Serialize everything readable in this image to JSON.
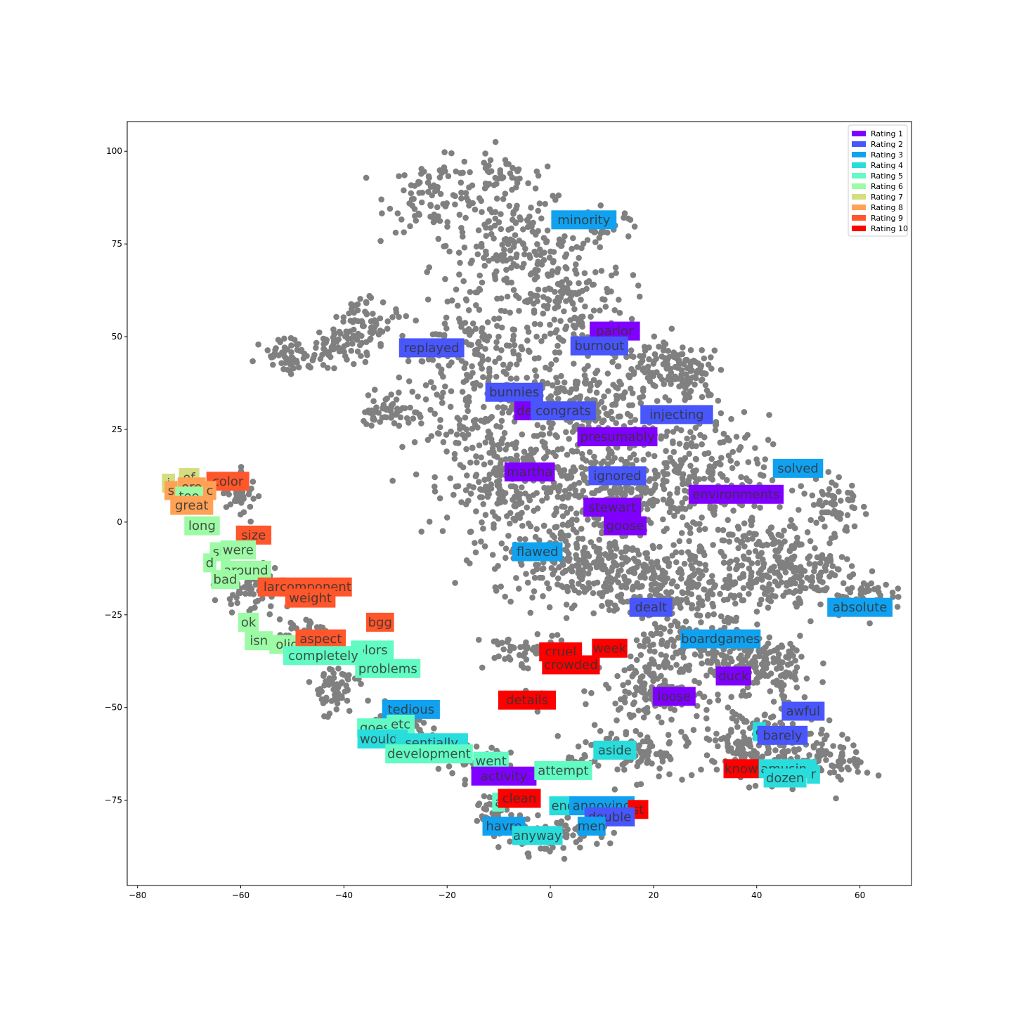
{
  "chart_data": {
    "type": "scatter",
    "title": "",
    "xlabel": "",
    "ylabel": "",
    "xlim": [
      -82,
      70
    ],
    "ylim": [
      -98,
      108
    ],
    "xticks": [
      -80,
      -60,
      -40,
      -20,
      0,
      20,
      40,
      60
    ],
    "yticks": [
      -75,
      -50,
      -25,
      0,
      25,
      50,
      75,
      100
    ],
    "grid": false,
    "legend_position": "top-right",
    "point_color": "#808080",
    "ratings": [
      {
        "name": "Rating 1",
        "color": "#8000ff"
      },
      {
        "name": "Rating 2",
        "color": "#4856fb"
      },
      {
        "name": "Rating 3",
        "color": "#10a2f0"
      },
      {
        "name": "Rating 4",
        "color": "#2adddd"
      },
      {
        "name": "Rating 5",
        "color": "#62fbc4"
      },
      {
        "name": "Rating 6",
        "color": "#9cfba4"
      },
      {
        "name": "Rating 7",
        "color": "#d4dd80"
      },
      {
        "name": "Rating 8",
        "color": "#ffa256"
      },
      {
        "name": "Rating 9",
        "color": "#ff562c"
      },
      {
        "name": "Rating 10",
        "color": "#ff0000"
      }
    ],
    "words": [
      {
        "text": "minority",
        "x": 6.5,
        "y": 81.5,
        "rating": 3
      },
      {
        "text": "parlor",
        "x": 12.5,
        "y": 51.5,
        "rating": 1
      },
      {
        "text": "burnout",
        "x": 9.5,
        "y": 47.5,
        "rating": 2
      },
      {
        "text": "replayed",
        "x": -23,
        "y": 47,
        "rating": 2
      },
      {
        "text": "bunnies",
        "x": -7,
        "y": 35,
        "rating": 2
      },
      {
        "text": "de",
        "x": -5,
        "y": 30,
        "rating": 1
      },
      {
        "text": "congrats",
        "x": 2.5,
        "y": 30,
        "rating": 2
      },
      {
        "text": "injecting",
        "x": 24.5,
        "y": 29,
        "rating": 2
      },
      {
        "text": "presumably",
        "x": 13,
        "y": 23,
        "rating": 1
      },
      {
        "text": "martha",
        "x": -4,
        "y": 13.5,
        "rating": 1
      },
      {
        "text": "ignored",
        "x": 13,
        "y": 12.5,
        "rating": 2
      },
      {
        "text": "solved",
        "x": 48,
        "y": 14.5,
        "rating": 3
      },
      {
        "text": "environments",
        "x": 36,
        "y": 7.5,
        "rating": 1
      },
      {
        "text": "stewart",
        "x": 12,
        "y": 4,
        "rating": 1
      },
      {
        "text": "goose",
        "x": 14.5,
        "y": -1,
        "rating": 1
      },
      {
        "text": "flawed",
        "x": -2.5,
        "y": -8,
        "rating": 3
      },
      {
        "text": "dealt",
        "x": 19.5,
        "y": -23,
        "rating": 2
      },
      {
        "text": "absolute",
        "x": 60,
        "y": -23,
        "rating": 3
      },
      {
        "text": "boardgames",
        "x": 33,
        "y": -31.5,
        "rating": 3
      },
      {
        "text": "cruel",
        "x": 2,
        "y": -35,
        "rating": 10
      },
      {
        "text": "week",
        "x": 11.5,
        "y": -34,
        "rating": 10
      },
      {
        "text": "crowded",
        "x": 4,
        "y": -38.5,
        "rating": 10
      },
      {
        "text": "duck",
        "x": 35.5,
        "y": -41.5,
        "rating": 1
      },
      {
        "text": "loose",
        "x": 24,
        "y": -47,
        "rating": 1
      },
      {
        "text": "details",
        "x": -4.5,
        "y": -48,
        "rating": 10
      },
      {
        "text": "awful",
        "x": 49,
        "y": -51,
        "rating": 2
      },
      {
        "text": "e",
        "x": 40.5,
        "y": -56.5,
        "rating": 4
      },
      {
        "text": "barely",
        "x": 45,
        "y": -57.5,
        "rating": 2
      },
      {
        "text": "aside",
        "x": 12.5,
        "y": -61.5,
        "rating": 4
      },
      {
        "text": "know",
        "x": 37,
        "y": -66.5,
        "rating": 10
      },
      {
        "text": "amusing",
        "x": 46,
        "y": -66.5,
        "rating": 4
      },
      {
        "text": "r",
        "x": 51,
        "y": -68,
        "rating": 4
      },
      {
        "text": "dozen",
        "x": 45.5,
        "y": -69,
        "rating": 4
      },
      {
        "text": "tedious",
        "x": -27,
        "y": -50.5,
        "rating": 3
      },
      {
        "text": "goes",
        "x": -34,
        "y": -55.5,
        "rating": 5
      },
      {
        "text": "etc",
        "x": -29,
        "y": -54.5,
        "rating": 5
      },
      {
        "text": "wouldn",
        "x": -32.5,
        "y": -58.5,
        "rating": 4
      },
      {
        "text": "sentially",
        "x": -23,
        "y": -59.5,
        "rating": 4
      },
      {
        "text": "development",
        "x": -23.5,
        "y": -62.5,
        "rating": 5
      },
      {
        "text": "went",
        "x": -11.5,
        "y": -64.5,
        "rating": 5
      },
      {
        "text": "activity",
        "x": -9,
        "y": -68.5,
        "rating": 1
      },
      {
        "text": "attempt",
        "x": 2.5,
        "y": -67,
        "rating": 5
      },
      {
        "text": "a",
        "x": -10,
        "y": -75.5,
        "rating": 5
      },
      {
        "text": "clean",
        "x": -6,
        "y": -74.5,
        "rating": 10
      },
      {
        "text": "end",
        "x": 2.5,
        "y": -76.5,
        "rating": 4
      },
      {
        "text": "annoying",
        "x": 10,
        "y": -76.5,
        "rating": 3
      },
      {
        "text": "st",
        "x": 17,
        "y": -77.5,
        "rating": 10
      },
      {
        "text": "double",
        "x": 11.5,
        "y": -79.5,
        "rating": 2
      },
      {
        "text": "men",
        "x": 8,
        "y": -82,
        "rating": 3
      },
      {
        "text": "havre",
        "x": -9,
        "y": -82,
        "rating": 3
      },
      {
        "text": "anyway",
        "x": -2.5,
        "y": -84.5,
        "rating": 4
      },
      {
        "text": "of",
        "x": -70,
        "y": 12,
        "rating": 7
      },
      {
        "text": "i",
        "x": -74,
        "y": 10.5,
        "rating": 7
      },
      {
        "text": "color",
        "x": -62.5,
        "y": 11,
        "rating": 9
      },
      {
        "text": "s",
        "x": -73.5,
        "y": 8.5,
        "rating": 8
      },
      {
        "text": "ore",
        "x": -69.5,
        "y": 9.5,
        "rating": 8
      },
      {
        "text": "c",
        "x": -66,
        "y": 8.5,
        "rating": 8
      },
      {
        "text": "too",
        "x": -70,
        "y": 7,
        "rating": 6
      },
      {
        "text": "great",
        "x": -69.5,
        "y": 4.5,
        "rating": 8
      },
      {
        "text": "long",
        "x": -67.5,
        "y": -1,
        "rating": 6
      },
      {
        "text": "size",
        "x": -57.5,
        "y": -3.5,
        "rating": 9
      },
      {
        "text": "sh",
        "x": -64,
        "y": -8,
        "rating": 6
      },
      {
        "text": "were",
        "x": -60.5,
        "y": -7.5,
        "rating": 6
      },
      {
        "text": "d",
        "x": -66,
        "y": -11,
        "rating": 6
      },
      {
        "text": "around",
        "x": -59,
        "y": -13,
        "rating": 6
      },
      {
        "text": "bad",
        "x": -63,
        "y": -15.5,
        "rating": 6
      },
      {
        "text": "lar",
        "x": -54,
        "y": -17.5,
        "rating": 9
      },
      {
        "text": "component",
        "x": -45.5,
        "y": -17.5,
        "rating": 9
      },
      {
        "text": "weight",
        "x": -46.5,
        "y": -20.5,
        "rating": 9
      },
      {
        "text": "ok",
        "x": -58.5,
        "y": -27,
        "rating": 6
      },
      {
        "text": "bgg",
        "x": -33,
        "y": -27,
        "rating": 9
      },
      {
        "text": "isn",
        "x": -56.5,
        "y": -32,
        "rating": 6
      },
      {
        "text": "olid",
        "x": -51,
        "y": -33,
        "rating": 6
      },
      {
        "text": "aspect",
        "x": -44.5,
        "y": -31.5,
        "rating": 9
      },
      {
        "text": "olors",
        "x": -34.5,
        "y": -34.5,
        "rating": 5
      },
      {
        "text": "completely",
        "x": -44,
        "y": -36,
        "rating": 5
      },
      {
        "text": "problems",
        "x": -31.5,
        "y": -39.5,
        "rating": 5
      }
    ]
  }
}
